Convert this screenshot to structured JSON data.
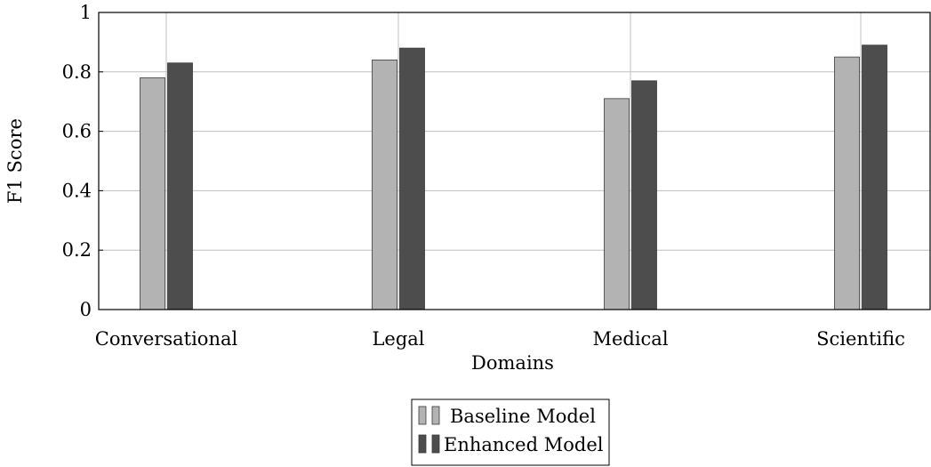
{
  "colors": {
    "baseline": "#b3b3b3",
    "enhanced": "#4d4d4d",
    "grid": "#bfbfbf"
  },
  "chart_data": {
    "type": "bar",
    "title": "",
    "xlabel": "Domains",
    "ylabel": "F1 Score",
    "categories": [
      "Conversational",
      "Legal",
      "Medical",
      "Scientific"
    ],
    "series": [
      {
        "name": "Baseline Model",
        "values": [
          0.78,
          0.84,
          0.71,
          0.85
        ]
      },
      {
        "name": "Enhanced Model",
        "values": [
          0.83,
          0.88,
          0.77,
          0.89
        ]
      }
    ],
    "ylim": [
      0,
      1
    ],
    "yticks": [
      "0",
      "0.2",
      "0.4",
      "0.6",
      "0.8",
      "1"
    ],
    "grid": true,
    "legend_position": "bottom-center"
  }
}
